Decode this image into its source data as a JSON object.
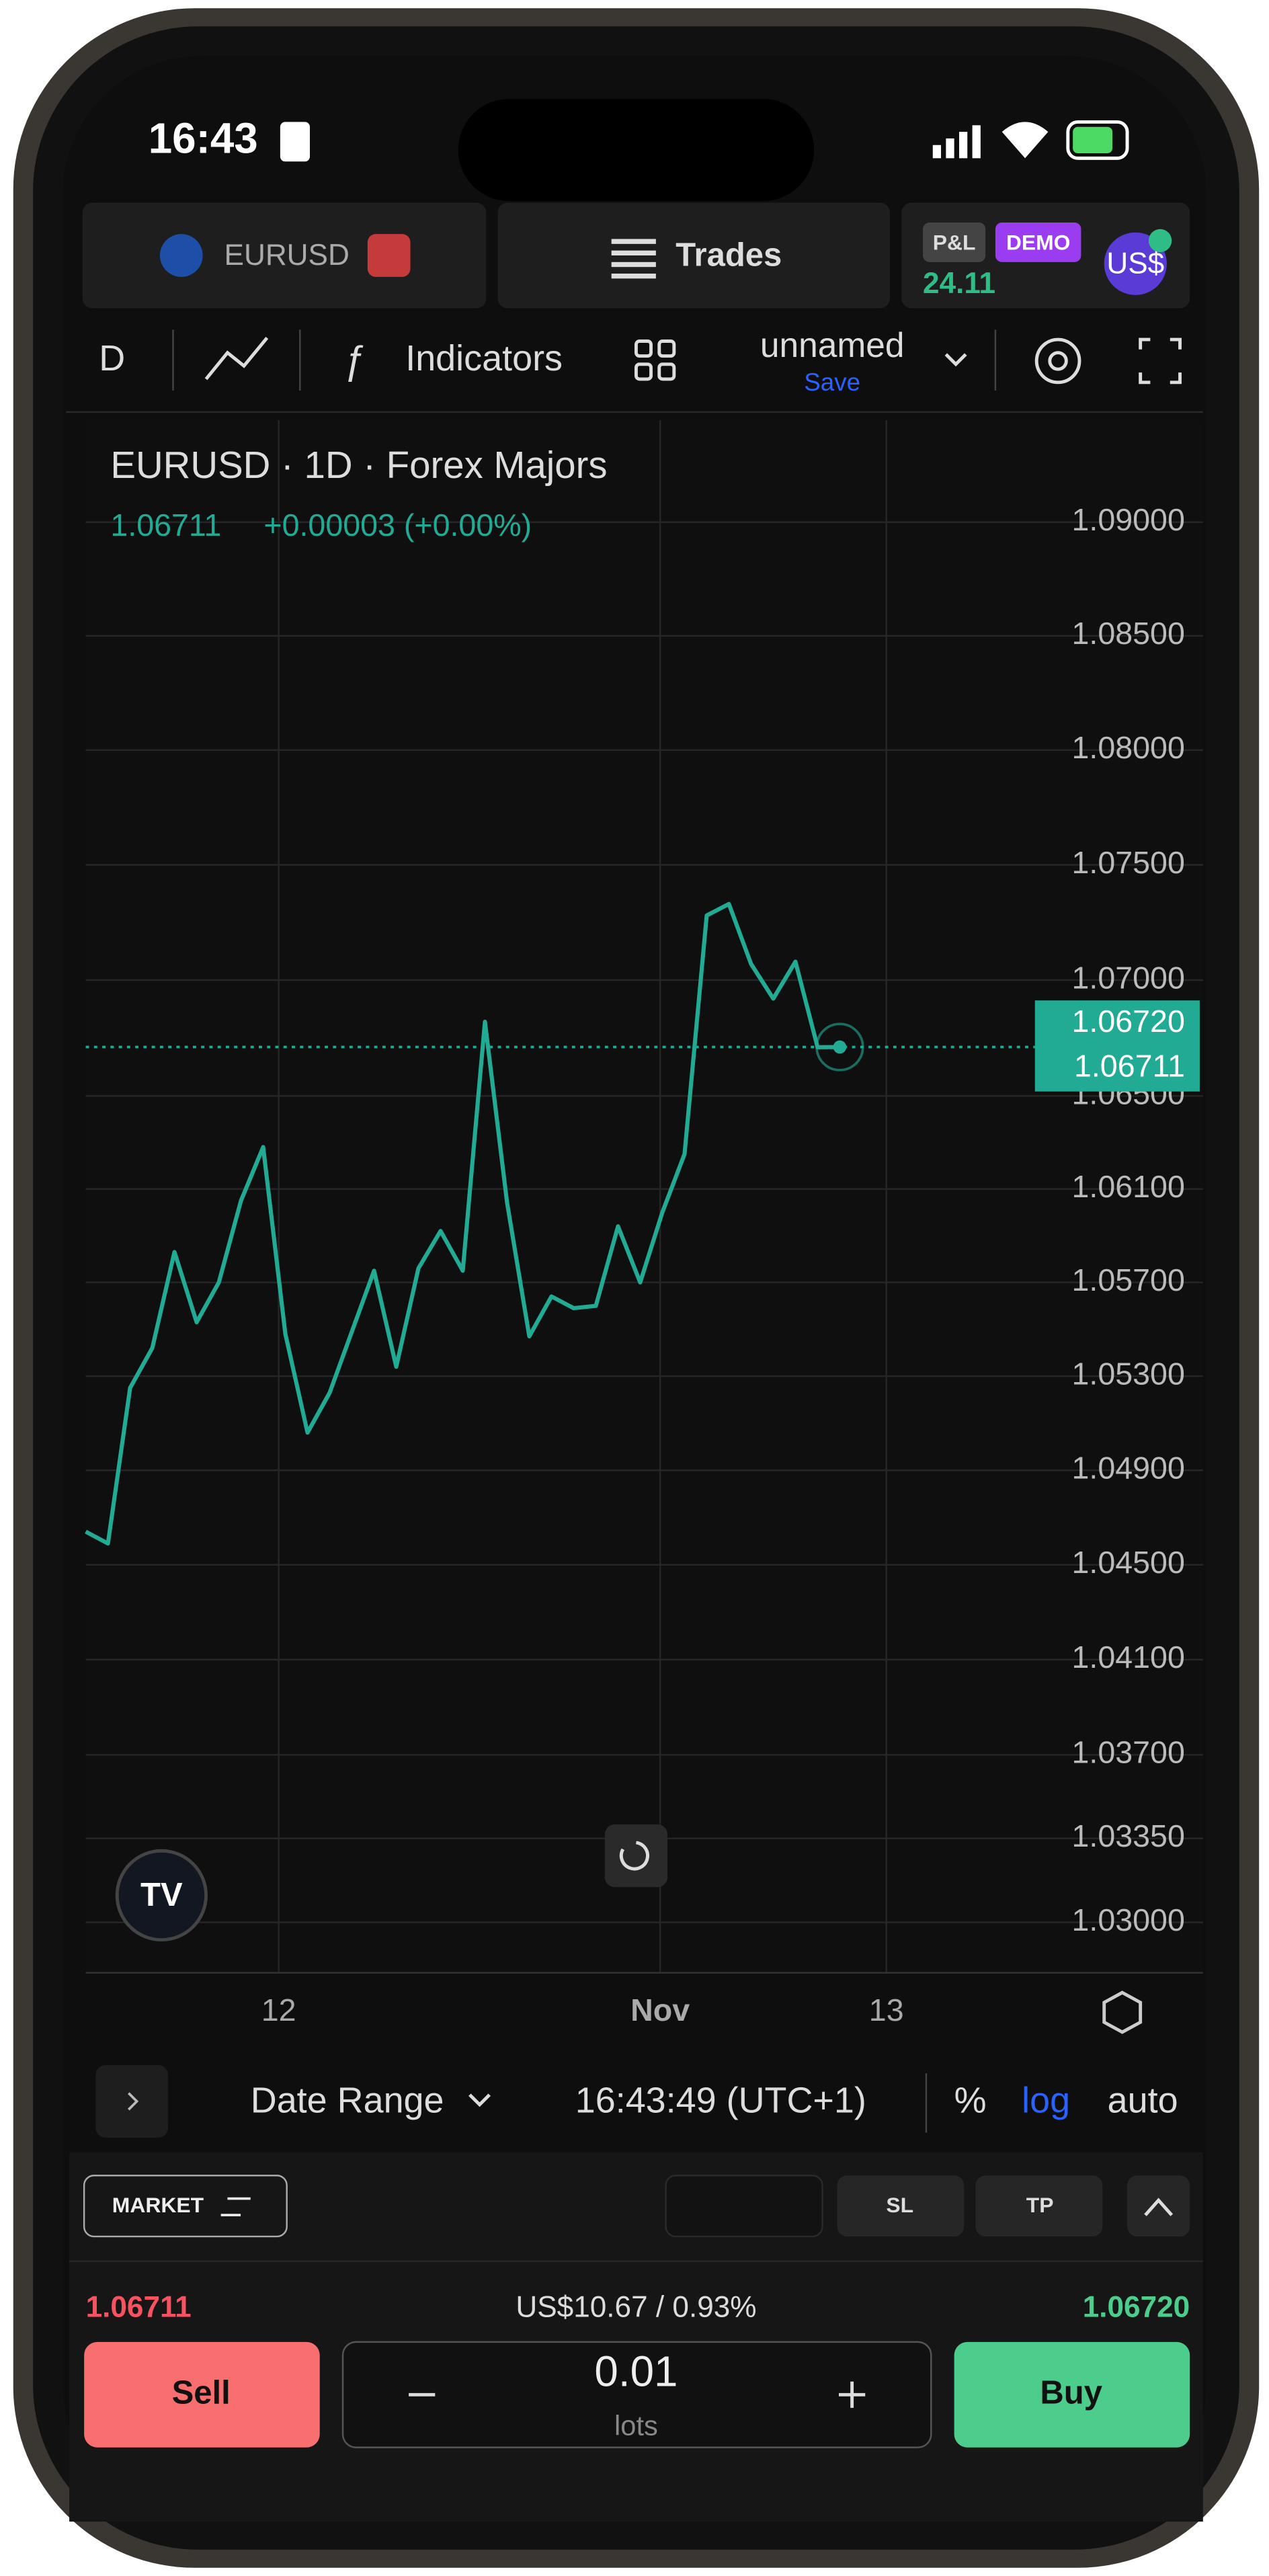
{
  "status_bar": {
    "time": "16:43"
  },
  "top_bar": {
    "symbol": "EURUSD",
    "trades": "Trades",
    "pnl_label": "P&L",
    "demo": "DEMO",
    "pnl_value": "24.11",
    "currency": "US$"
  },
  "toolbar": {
    "interval": "D",
    "indicators": "Indicators",
    "layout_name": "unnamed",
    "save": "Save"
  },
  "chart_data": {
    "type": "line",
    "title": "EURUSD · 1D · Forex Majors",
    "last": "1.06711",
    "change": "+0.00003 (+0.00%)",
    "x": [
      0,
      1,
      2,
      3,
      4,
      5,
      6,
      7,
      8,
      9,
      10,
      11,
      12,
      13,
      14,
      15,
      16,
      17,
      18,
      19,
      20,
      21,
      22,
      23,
      24,
      25,
      26,
      27,
      28,
      29,
      30,
      31,
      32,
      33,
      34
    ],
    "series": [
      {
        "color": "#22ab94",
        "values": [
          1.0464,
          1.0459,
          1.0525,
          1.0542,
          1.0583,
          1.0553,
          1.057,
          1.0605,
          1.0628,
          1.0548,
          1.0506,
          1.0523,
          1.0549,
          1.0575,
          1.0534,
          1.0576,
          1.0592,
          1.0575,
          1.0682,
          1.0604,
          1.0547,
          1.0564,
          1.0559,
          1.056,
          1.0594,
          1.057,
          1.06,
          1.0625,
          1.0728,
          1.0733,
          1.0707,
          1.0692,
          1.0708,
          1.0671,
          1.06711
        ]
      }
    ],
    "xlim": [
      0,
      42.8
    ],
    "xticks": [
      {
        "value": 8.7,
        "label": "12"
      },
      {
        "value": 25.9,
        "label": "Nov"
      },
      {
        "value": 36.1,
        "label": "13"
      }
    ],
    "ylim": [
      1.0279,
      1.0945
    ],
    "log_scale": true,
    "grid": true,
    "yticks": [
      {
        "value": 1.03,
        "label": "1.03000"
      },
      {
        "value": 1.0335,
        "label": "1.03350"
      },
      {
        "value": 1.037,
        "label": "1.03700"
      },
      {
        "value": 1.041,
        "label": "1.04100"
      },
      {
        "value": 1.045,
        "label": "1.04500"
      },
      {
        "value": 1.049,
        "label": "1.04900"
      },
      {
        "value": 1.053,
        "label": "1.05300"
      },
      {
        "value": 1.057,
        "label": "1.05700"
      },
      {
        "value": 1.061,
        "label": "1.06100"
      },
      {
        "value": 1.065,
        "label": "1.06500"
      },
      {
        "value": 1.07,
        "label": "1.07000"
      },
      {
        "value": 1.075,
        "label": "1.07500"
      },
      {
        "value": 1.08,
        "label": "1.08000"
      },
      {
        "value": 1.085,
        "label": "1.08500"
      },
      {
        "value": 1.09,
        "label": "1.09000"
      }
    ],
    "price_labels": [
      {
        "value": 1.06711,
        "label": "1.06711"
      },
      {
        "value": 1.0672,
        "label": "1.06720"
      }
    ]
  },
  "bottom_bar": {
    "date_range": "Date Range",
    "clock": "16:43:49 (UTC+1)",
    "percent": "%",
    "log": "log",
    "auto": "auto"
  },
  "order_panel": {
    "market": "MARKET",
    "sl": "SL",
    "tp": "TP",
    "sell_price": "1.06711",
    "margin": "US$10.67 / 0.93%",
    "buy_price": "1.06720",
    "sell": "Sell",
    "quantity": "0.01",
    "unit": "lots",
    "buy": "Buy"
  }
}
